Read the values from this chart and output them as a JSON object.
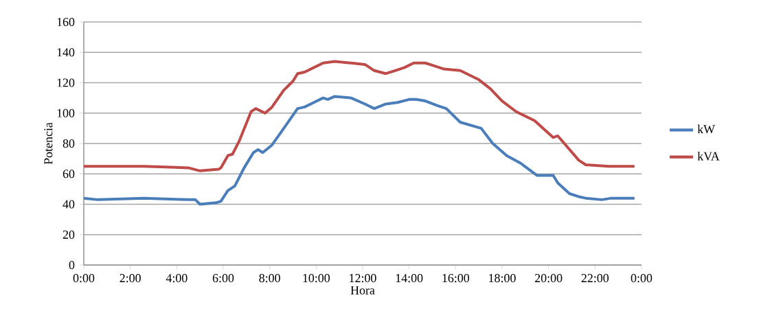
{
  "chart_data": {
    "type": "line",
    "xlabel": "Hora",
    "ylabel": "Potencia",
    "xlim": [
      0,
      24
    ],
    "ylim": [
      0,
      160
    ],
    "xticks": [
      {
        "value": 0,
        "label": "0:00"
      },
      {
        "value": 2,
        "label": "2:00"
      },
      {
        "value": 4,
        "label": "4:00"
      },
      {
        "value": 6,
        "label": "6:00"
      },
      {
        "value": 8,
        "label": "8:00"
      },
      {
        "value": 10,
        "label": "10:00"
      },
      {
        "value": 12,
        "label": "12:00"
      },
      {
        "value": 14,
        "label": "14:00"
      },
      {
        "value": 16,
        "label": "16:00"
      },
      {
        "value": 18,
        "label": "18:00"
      },
      {
        "value": 20,
        "label": "20:00"
      },
      {
        "value": 22,
        "label": "22:00"
      },
      {
        "value": 24,
        "label": "0:00"
      }
    ],
    "yticks": [
      0,
      20,
      40,
      60,
      80,
      100,
      120,
      140,
      160
    ],
    "grid": "y",
    "legend": "right",
    "marker": "none",
    "line_style": "solid",
    "series": [
      {
        "name": "kW",
        "color": "#4a7ebb",
        "x": [
          0,
          0.6,
          2.6,
          4.5,
          4.8,
          5.0,
          5.7,
          5.9,
          6.2,
          6.5,
          6.9,
          7.3,
          7.5,
          7.7,
          8.1,
          8.7,
          9.2,
          9.5,
          9.9,
          10.3,
          10.5,
          10.8,
          11.5,
          12.1,
          12.5,
          13.0,
          13.5,
          14.0,
          14.3,
          14.7,
          15.2,
          15.6,
          16.2,
          17.1,
          17.6,
          18.2,
          18.8,
          19.5,
          20.2,
          20.4,
          20.9,
          21.3,
          21.6,
          22.3,
          22.7,
          23.7
        ],
        "values": [
          44,
          43,
          44,
          43,
          43,
          40,
          41,
          42,
          49,
          52,
          64,
          74,
          76,
          74,
          79,
          92,
          103,
          104,
          107,
          110,
          109,
          111,
          110,
          106,
          103,
          106,
          107,
          109,
          109,
          108,
          105,
          103,
          94,
          90,
          80,
          72,
          67,
          59,
          59,
          54,
          47,
          45,
          44,
          43,
          44,
          44
        ]
      },
      {
        "name": "kVA",
        "color": "#be4b48",
        "x": [
          0,
          2.6,
          4.5,
          5.0,
          5.8,
          5.9,
          6.2,
          6.4,
          6.7,
          7.2,
          7.4,
          7.8,
          8.1,
          8.6,
          9.0,
          9.2,
          9.5,
          9.9,
          10.3,
          10.8,
          11.5,
          12.1,
          12.5,
          13.0,
          13.4,
          13.8,
          14.2,
          14.7,
          15.1,
          15.5,
          16.2,
          17.0,
          17.5,
          18.0,
          18.6,
          19.4,
          20.2,
          20.4,
          21.3,
          21.6,
          22.6,
          23.7
        ],
        "values": [
          65,
          65,
          64,
          62,
          63,
          64,
          72,
          73,
          82,
          101,
          103,
          100,
          104,
          115,
          121,
          126,
          127,
          130,
          133,
          134,
          133,
          132,
          128,
          126,
          128,
          130,
          133,
          133,
          131,
          129,
          128,
          122,
          116,
          108,
          101,
          95,
          84,
          85,
          69,
          66,
          65,
          65
        ]
      }
    ]
  }
}
